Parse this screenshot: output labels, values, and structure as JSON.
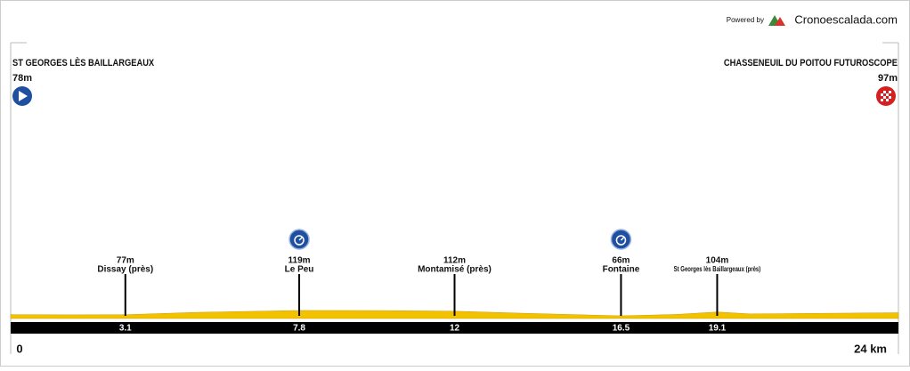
{
  "header": {
    "powered_by": "Powered by",
    "brand": "Cronoescalada.com"
  },
  "chart_data": {
    "type": "area",
    "start": {
      "name": "ST GEORGES LÈS BAILLARGEAUX",
      "altitude": 78,
      "altitude_label": "78m"
    },
    "finish": {
      "name": "CHASSENEUIL DU POITOU FUTUROSCOPE",
      "altitude": 97,
      "altitude_label": "97m"
    },
    "x": [
      0,
      1.5,
      3.1,
      5,
      7.8,
      10,
      12,
      14,
      16.5,
      18,
      19.1,
      20,
      24
    ],
    "values": [
      78,
      76,
      77,
      100,
      119,
      118,
      112,
      90,
      66,
      80,
      104,
      85,
      97
    ],
    "color": "#f2c200",
    "xlim": [
      0,
      24
    ],
    "ylim": [
      40,
      800
    ],
    "xticks": [
      0,
      3.1,
      7.8,
      12,
      16.5,
      19.1,
      {
        "value": 24,
        "label": "24 km"
      }
    ],
    "waypoints": {
      "names": [
        "Dissay (près)",
        "Le Peu",
        "Montamisé (près)",
        "Fontaine",
        "St Georges lès Baillargeaux (près)"
      ],
      "x": [
        3.1,
        7.8,
        12,
        16.5,
        19.1
      ],
      "values": [
        77,
        119,
        112,
        66,
        104
      ],
      "value_labels": [
        "77m",
        "119m",
        "112m",
        "66m",
        "104m"
      ],
      "icons": [
        false,
        true,
        false,
        true,
        false
      ]
    }
  }
}
